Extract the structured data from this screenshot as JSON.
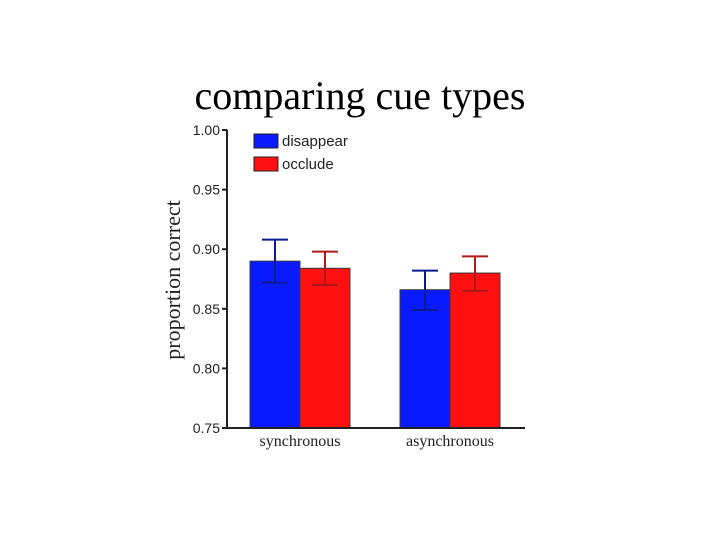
{
  "slide": {
    "title": "comparing cue types"
  },
  "chart_data": {
    "type": "bar",
    "title": "",
    "xlabel": "",
    "ylabel": "proportion correct",
    "ylim": [
      0.75,
      1.0
    ],
    "yticks": [
      0.75,
      0.8,
      0.85,
      0.9,
      0.95,
      1.0
    ],
    "ytick_labels": [
      "0.75",
      "0.80",
      "0.85",
      "0.90",
      "0.95",
      "1.00"
    ],
    "categories": [
      "synchronous",
      "asynchronous"
    ],
    "series": [
      {
        "name": "disappear",
        "color": "#0a1aff",
        "error_color": "#0b1a8c",
        "values": [
          0.89,
          0.866
        ],
        "err_low": [
          0.872,
          0.849
        ],
        "err_high": [
          0.908,
          0.882
        ]
      },
      {
        "name": "occlude",
        "color": "#ff1010",
        "error_color": "#b01818",
        "values": [
          0.884,
          0.88
        ],
        "err_low": [
          0.87,
          0.865
        ],
        "err_high": [
          0.898,
          0.894
        ]
      }
    ],
    "grid": false,
    "legend": "top-left"
  }
}
